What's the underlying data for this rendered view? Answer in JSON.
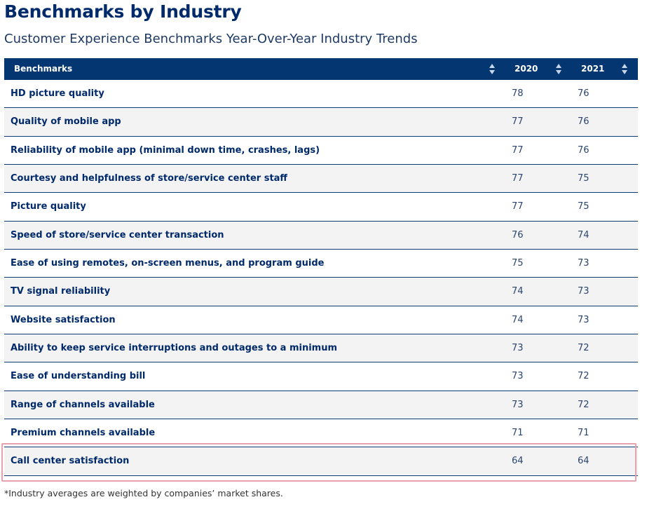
{
  "page": {
    "title": "Benchmarks by Industry",
    "subtitle": "Customer Experience Benchmarks Year-Over-Year Industry Trends"
  },
  "table": {
    "headers": {
      "benchmarks": "Benchmarks",
      "year_2020": "2020",
      "year_2021": "2021"
    },
    "rows": [
      {
        "name": "HD picture quality",
        "v2020": "78",
        "v2021": "76"
      },
      {
        "name": "Quality of mobile app",
        "v2020": "77",
        "v2021": "76"
      },
      {
        "name": "Reliability of mobile app (minimal down time, crashes, lags)",
        "v2020": "77",
        "v2021": "76"
      },
      {
        "name": "Courtesy and helpfulness of store/service center staff",
        "v2020": "77",
        "v2021": "75"
      },
      {
        "name": "Picture quality",
        "v2020": "77",
        "v2021": "75"
      },
      {
        "name": "Speed of store/service center transaction",
        "v2020": "76",
        "v2021": "74"
      },
      {
        "name": "Ease of using remotes, on-screen menus, and program guide",
        "v2020": "75",
        "v2021": "73"
      },
      {
        "name": "TV signal reliability",
        "v2020": "74",
        "v2021": "73"
      },
      {
        "name": "Website satisfaction",
        "v2020": "74",
        "v2021": "73"
      },
      {
        "name": "Ability to keep service interruptions and outages to a minimum",
        "v2020": "73",
        "v2021": "72"
      },
      {
        "name": "Ease of understanding bill",
        "v2020": "73",
        "v2021": "72"
      },
      {
        "name": "Range of channels available",
        "v2020": "73",
        "v2021": "72"
      },
      {
        "name": "Premium channels available",
        "v2020": "71",
        "v2021": "71"
      },
      {
        "name": "Call center satisfaction",
        "v2020": "64",
        "v2021": "64"
      }
    ]
  },
  "footnote": "*Industry averages are weighted by companies’ market shares.",
  "colors": {
    "header_bg": "#043772",
    "title": "#012a6b",
    "highlight_border": "#e8a2ad"
  },
  "icons": [
    "sort-icon"
  ]
}
